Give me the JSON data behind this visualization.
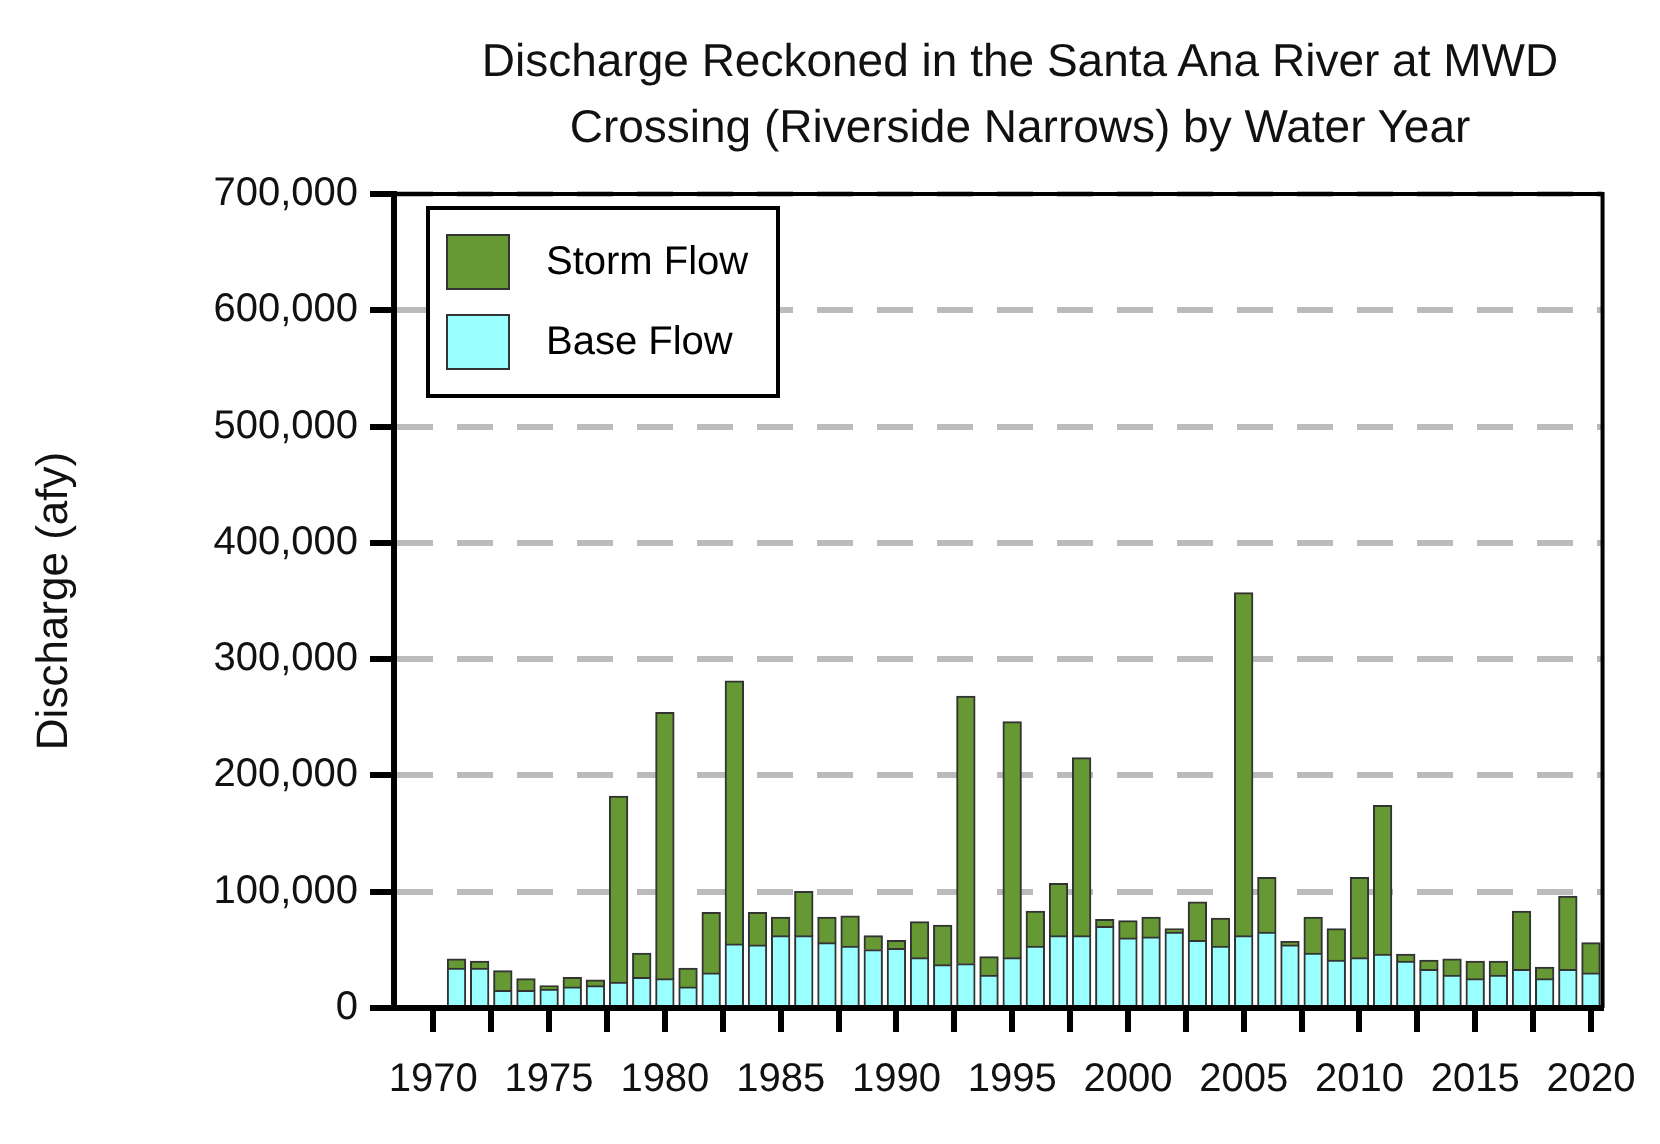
{
  "chart_data": {
    "type": "bar",
    "title": "Discharge Reckoned in the Santa Ana River at MWD Crossing (Riverside Narrows) by Water Year",
    "ylabel": "Discharge (afy)",
    "x": [
      1971,
      1972,
      1973,
      1974,
      1975,
      1976,
      1977,
      1978,
      1979,
      1980,
      1981,
      1982,
      1983,
      1984,
      1985,
      1986,
      1987,
      1988,
      1989,
      1990,
      1991,
      1992,
      1993,
      1994,
      1995,
      1996,
      1997,
      1998,
      1999,
      2000,
      2001,
      2002,
      2003,
      2004,
      2005,
      2006,
      2007,
      2008,
      2009,
      2010,
      2011,
      2012,
      2013,
      2014,
      2015,
      2016,
      2017,
      2018,
      2019,
      2020
    ],
    "stacked": true,
    "series": [
      {
        "name": "Base Flow",
        "color": "#99ffff",
        "values": [
          34000,
          34000,
          15000,
          15000,
          16000,
          18000,
          19000,
          22000,
          26000,
          25000,
          18000,
          30000,
          55000,
          54000,
          62000,
          62000,
          56000,
          53000,
          50000,
          51000,
          43000,
          37000,
          38000,
          28000,
          43000,
          53000,
          62000,
          62000,
          70000,
          60000,
          61000,
          65000,
          58000,
          53000,
          62000,
          65000,
          54000,
          47000,
          41000,
          43000,
          46000,
          40000,
          33000,
          28000,
          25000,
          28000,
          33000,
          25000,
          33000,
          30000
        ]
      },
      {
        "name": "Storm Flow",
        "color": "#669933",
        "values": [
          8000,
          6000,
          17000,
          10000,
          3000,
          8000,
          5000,
          160000,
          21000,
          229000,
          16000,
          52000,
          226000,
          28000,
          16000,
          38000,
          22000,
          26000,
          12000,
          7000,
          31000,
          34000,
          230000,
          16000,
          203000,
          30000,
          45000,
          153000,
          6000,
          15000,
          17000,
          3000,
          33000,
          24000,
          295000,
          47000,
          3000,
          31000,
          27000,
          69000,
          128000,
          6000,
          8000,
          14000,
          15000,
          12000,
          50000,
          10000,
          63000,
          26000
        ]
      }
    ],
    "xlim": [
      1968.3,
      2020.5
    ],
    "xticks": [
      1970,
      {
        "value": 1972.5,
        "label": null
      },
      1975,
      {
        "value": 1977.5,
        "label": null
      },
      1980,
      {
        "value": 1982.5,
        "label": null
      },
      1985,
      {
        "value": 1987.5,
        "label": null
      },
      1990,
      {
        "value": 1992.5,
        "label": null
      },
      1995,
      {
        "value": 1997.5,
        "label": null
      },
      2000,
      {
        "value": 2002.5,
        "label": null
      },
      2005,
      {
        "value": 2007.5,
        "label": null
      },
      2010,
      {
        "value": 2012.5,
        "label": null
      },
      2015,
      {
        "value": 2017.5,
        "label": null
      },
      2020
    ],
    "ylim": [
      0,
      700000
    ],
    "yticks": [
      {
        "value": 0,
        "label": "0"
      },
      {
        "value": 100000,
        "label": "100,000"
      },
      {
        "value": 200000,
        "label": "200,000"
      },
      {
        "value": 300000,
        "label": "300,000"
      },
      {
        "value": 400000,
        "label": "400,000"
      },
      {
        "value": 500000,
        "label": "500,000"
      },
      {
        "value": 600000,
        "label": "600,000"
      },
      {
        "value": 700000,
        "label": "700,000"
      }
    ],
    "grid": "y",
    "legend": "top left"
  }
}
